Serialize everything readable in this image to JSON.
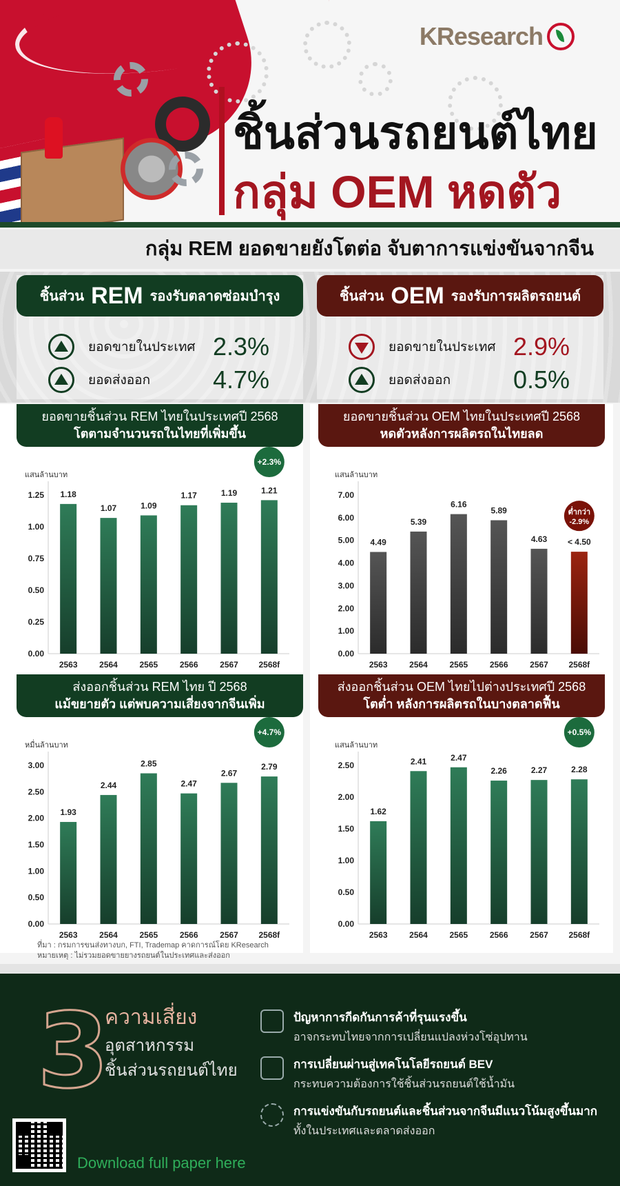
{
  "brand": {
    "logo_text": "KResearch"
  },
  "header": {
    "title_line1": "ชิ้นส่วนรถยนต์ไทย",
    "title_line2": "กลุ่ม OEM หดตัว",
    "subtitle": "กลุ่ม REM ยอดขายยังโตต่อ จับตาการแข่งขันจากจีน"
  },
  "colors": {
    "dark_green": "#123d22",
    "dark_red": "#5a1710",
    "bar_green": "#2f7c58",
    "bar_grey": "#4a4a4a",
    "bar_red": "#8b1a0d"
  },
  "summary": {
    "rem": {
      "prefix": "ชิ้นส่วน",
      "big": "REM",
      "suffix": "รองรับตลาดซ่อมบำรุง",
      "metrics": [
        {
          "label": "ยอดขายในประเทศ",
          "value": "2.3%",
          "icon": "arrow-up-icon"
        },
        {
          "label": "ยอดส่งออก",
          "value": "4.7%",
          "icon": "arrow-up-icon"
        }
      ]
    },
    "oem": {
      "prefix": "ชิ้นส่วน",
      "big": "OEM",
      "suffix": "รองรับการผลิตรถยนต์",
      "metrics": [
        {
          "label": "ยอดขายในประเทศ",
          "value": "2.9%",
          "icon": "arrow-down-icon"
        },
        {
          "label": "ยอดส่งออก",
          "value": "0.5%",
          "icon": "arrow-up-icon"
        }
      ]
    }
  },
  "chart_data": [
    {
      "type": "bar",
      "title_line1": "ยอดขายชิ้นส่วน REM ไทยในประเทศปี 2568",
      "title_line2": "โตตามจำนวนรถในไทยที่เพิ่มขึ้น",
      "ylabel": "แสนล้านบาท",
      "categories": [
        "2563",
        "2564",
        "2565",
        "2566",
        "2567",
        "2568f"
      ],
      "values": [
        1.18,
        1.07,
        1.09,
        1.17,
        1.19,
        1.21
      ],
      "value_labels": [
        "1.18",
        "1.07",
        "1.09",
        "1.17",
        "1.19",
        "1.21"
      ],
      "yticks": [
        "0.00",
        "0.25",
        "0.50",
        "0.75",
        "1.00",
        "1.25"
      ],
      "ylim": [
        0,
        1.25
      ],
      "badge": "+2.3%",
      "highlight_label": "",
      "color": "green"
    },
    {
      "type": "bar",
      "title_line1": "ยอดขายชิ้นส่วน OEM ไทยในประเทศปี 2568",
      "title_line2": "หดตัวหลังการผลิตรถในไทยลด",
      "ylabel": "แสนล้านบาท",
      "categories": [
        "2563",
        "2564",
        "2565",
        "2566",
        "2567",
        "2568f"
      ],
      "values": [
        4.49,
        5.39,
        6.16,
        5.89,
        4.63,
        4.5
      ],
      "value_labels": [
        "4.49",
        "5.39",
        "6.16",
        "5.89",
        "4.63",
        "< 4.50"
      ],
      "yticks": [
        "0.00",
        "1.00",
        "2.00",
        "3.00",
        "4.00",
        "5.00",
        "6.00",
        "7.00"
      ],
      "ylim": [
        0,
        7
      ],
      "badge": "-2.9%",
      "badge_prefix": "ต่ำกว่า",
      "color": "grey"
    },
    {
      "type": "bar",
      "title_line1": "ส่งออกชิ้นส่วน REM ไทย ปี 2568",
      "title_line2": "แม้ขยายตัว แต่พบความเสี่ยงจากจีนเพิ่ม",
      "ylabel": "หมื่นล้านบาท",
      "categories": [
        "2563",
        "2564",
        "2565",
        "2566",
        "2567",
        "2568f"
      ],
      "values": [
        1.93,
        2.44,
        2.85,
        2.47,
        2.67,
        2.79
      ],
      "value_labels": [
        "1.93",
        "2.44",
        "2.85",
        "2.47",
        "2.67",
        "2.79"
      ],
      "yticks": [
        "0.00",
        "0.50",
        "1.00",
        "1.50",
        "2.00",
        "2.50",
        "3.00"
      ],
      "ylim": [
        0,
        3
      ],
      "badge": "+4.7%",
      "color": "green"
    },
    {
      "type": "bar",
      "title_line1": "ส่งออกชิ้นส่วน OEM ไทยไปต่างประเทศปี 2568",
      "title_line2": "โตต่ำ หลังการผลิตรถในบางตลาดฟื้น",
      "ylabel": "แสนล้านบาท",
      "categories": [
        "2563",
        "2564",
        "2565",
        "2566",
        "2567",
        "2568f"
      ],
      "values": [
        1.62,
        2.41,
        2.47,
        2.26,
        2.27,
        2.28
      ],
      "value_labels": [
        "1.62",
        "2.41",
        "2.47",
        "2.26",
        "2.27",
        "2.28"
      ],
      "yticks": [
        "0.00",
        "0.50",
        "1.00",
        "1.50",
        "2.00",
        "2.50"
      ],
      "ylim": [
        0,
        2.5
      ],
      "badge": "+0.5%",
      "color": "green"
    }
  ],
  "source": {
    "line1": "ที่มา : กรมการขนส่งทางบก, FTI, Trademap คาดการณ์โดย KResearch",
    "line2": "หมายเหตุ : ไม่รวมยอดขายยางรถยนต์ในประเทศและส่งออก"
  },
  "footer": {
    "number": "3",
    "title1": "ความเสี่ยง",
    "title2": "อุตสาหกรรม",
    "title3": "ชิ้นส่วนรถยนต์ไทย",
    "risks": [
      {
        "icon": "trade-barrier-icon",
        "heading": "ปัญหาการกีดกันการค้าที่รุนแรงขึ้น",
        "sub": "อาจกระทบไทยจากการเปลี่ยนแปลงห่วงโซ่อุปทาน"
      },
      {
        "icon": "ev-car-icon",
        "heading": "การเปลี่ยนผ่านสู่เทคโนโลยีรถยนต์ BEV",
        "sub": "กระทบความต้องการใช้ชิ้นส่วนรถยนต์ใช้น้ำมัน"
      },
      {
        "icon": "gear-icon",
        "heading": "การแข่งขันกับรถยนต์และชิ้นส่วนจากจีนมีแนวโน้มสูงขึ้นมาก",
        "sub": "ทั้งในประเทศและตลาดส่งออก"
      }
    ],
    "download": "Download full paper here"
  }
}
